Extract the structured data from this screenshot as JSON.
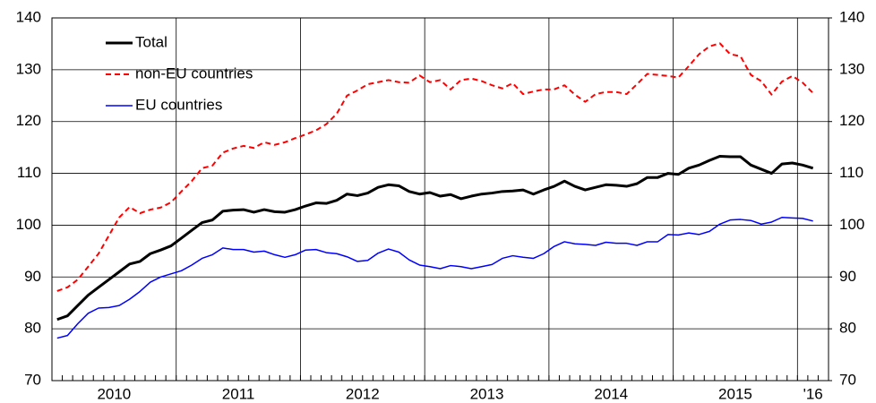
{
  "chart_data": {
    "type": "line",
    "categories": [
      "2010",
      null,
      null,
      null,
      null,
      null,
      null,
      null,
      null,
      null,
      null,
      null,
      "2011",
      null,
      null,
      null,
      null,
      null,
      null,
      null,
      null,
      null,
      null,
      null,
      "2012",
      null,
      null,
      null,
      null,
      null,
      null,
      null,
      null,
      null,
      null,
      null,
      "2013",
      null,
      null,
      null,
      null,
      null,
      null,
      null,
      null,
      null,
      null,
      null,
      "2014",
      null,
      null,
      null,
      null,
      null,
      null,
      null,
      null,
      null,
      null,
      null,
      "2015",
      null,
      null,
      null,
      null,
      null,
      null,
      null,
      null,
      null,
      null,
      null,
      "'16",
      null,
      null
    ],
    "series": [
      {
        "name": "Total",
        "color": "#000000",
        "linestyle": "solid",
        "linewidth": 3,
        "values": [
          81.8,
          82.5,
          84.5,
          86.5,
          88,
          89.5,
          91,
          92.5,
          93,
          94.5,
          95.2,
          96,
          97.5,
          99,
          100.5,
          101,
          102.7,
          102.9,
          103,
          102.5,
          103,
          102.6,
          102.5,
          103,
          103.7,
          104.3,
          104.2,
          104.8,
          106,
          105.7,
          106.2,
          107.3,
          107.8,
          107.6,
          106.5,
          106,
          106.3,
          105.6,
          105.9,
          105.1,
          105.6,
          106,
          106.2,
          106.5,
          106.6,
          106.8,
          106,
          106.8,
          107.5,
          108.5,
          107.5,
          106.8,
          107.3,
          107.8,
          107.7,
          107.5,
          108,
          109.2,
          109.2,
          110,
          109.8,
          111,
          111.6,
          112.5,
          113.3,
          113.2,
          113.2,
          111.6,
          110.8,
          110,
          111.8,
          112,
          111.6,
          111,
          null
        ]
      },
      {
        "name": "non-EU countries",
        "color": "#ff0000",
        "linestyle": "dashed",
        "linewidth": 2,
        "values": [
          87.3,
          88,
          89.5,
          92,
          94.5,
          98,
          101.5,
          103.5,
          102.3,
          103,
          103.4,
          104.4,
          106.5,
          108.5,
          111,
          111.5,
          114,
          114.8,
          115.3,
          114.9,
          116,
          115.5,
          116,
          116.8,
          117.5,
          118.3,
          119.5,
          121.5,
          125,
          126,
          127.2,
          127.6,
          128,
          127.6,
          127.5,
          128.9,
          127.6,
          128,
          126.2,
          128,
          128.3,
          127.8,
          127,
          126.4,
          127.4,
          125.3,
          125.8,
          126.2,
          126.2,
          127,
          125.2,
          123.8,
          125.3,
          125.7,
          125.7,
          125.3,
          127.2,
          129.2,
          129,
          128.8,
          128.5,
          130.7,
          133,
          134.5,
          135.1,
          133,
          132.6,
          129,
          127.8,
          125.2,
          127.7,
          128.8,
          127.5,
          125.5,
          null
        ]
      },
      {
        "name": "EU countries",
        "color": "#0000ff",
        "linestyle": "solid",
        "linewidth": 1.5,
        "values": [
          78.2,
          78.7,
          81,
          83,
          84,
          84.1,
          84.5,
          85.7,
          87.2,
          89,
          90,
          90.6,
          91.2,
          92.3,
          93.6,
          94.3,
          95.6,
          95.3,
          95.3,
          94.8,
          95,
          94.3,
          93.8,
          94.3,
          95.2,
          95.3,
          94.7,
          94.5,
          93.9,
          93,
          93.2,
          94.6,
          95.4,
          94.8,
          93.3,
          92.3,
          92,
          91.6,
          92.2,
          92,
          91.6,
          92,
          92.4,
          93.6,
          94.1,
          93.8,
          93.6,
          94.5,
          95.9,
          96.8,
          96.4,
          96.3,
          96.1,
          96.7,
          96.5,
          96.5,
          96.1,
          96.8,
          96.8,
          98.2,
          98.1,
          98.5,
          98.2,
          98.8,
          100.2,
          101,
          101.1,
          100.9,
          100.2,
          100.6,
          101.5,
          101.4,
          101.3,
          100.8,
          null
        ]
      }
    ],
    "ylim": [
      70,
      140
    ],
    "yticks": [
      70,
      80,
      90,
      100,
      110,
      120,
      130,
      140
    ],
    "y2lim": [
      70,
      140
    ],
    "y2ticks": [
      70,
      80,
      90,
      100,
      110,
      120,
      130,
      140
    ],
    "grid": true,
    "legend": "upper left"
  }
}
